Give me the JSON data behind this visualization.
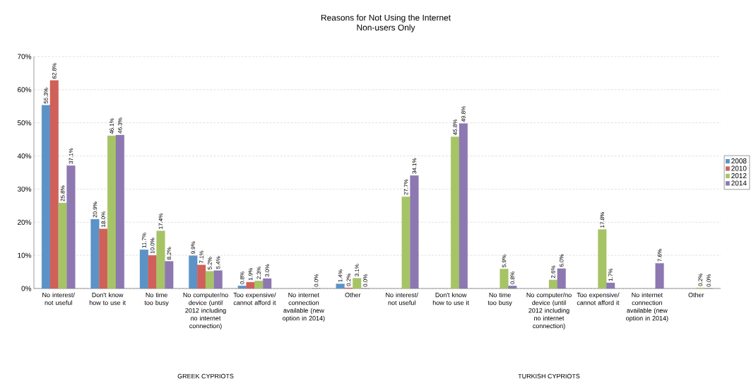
{
  "chart_data": {
    "type": "bar",
    "title": "Reasons for Not Using the Internet",
    "subtitle": "Non-users Only",
    "categories": [
      "No interest/ not useful",
      "Don't know how to use it",
      "No time too busy",
      "No computer/no device (until 2012 including no internet connection)",
      "Too expensive/ cannot afford it",
      "No internet connection available (new option in 2014)",
      "Other",
      "No interest/ not useful",
      "Don't know how to use it",
      "No time too busy",
      "No computer/no device (until 2012 including no internet connection)",
      "Too expensive/ cannot afford it",
      "No internet connection available (new option in 2014)",
      "Other"
    ],
    "series": [
      {
        "name": "2008",
        "color": "#5b93c7",
        "values": [
          55.3,
          20.9,
          11.7,
          9.9,
          0.8,
          null,
          1.4,
          null,
          null,
          null,
          null,
          null,
          null,
          null
        ],
        "value_labels": [
          "55.3%",
          "20.9%",
          "11.7%",
          "9.9%",
          "0.8%",
          null,
          "1.4%",
          null,
          null,
          null,
          null,
          null,
          null,
          null
        ]
      },
      {
        "name": "2010",
        "color": "#d0605a",
        "values": [
          62.8,
          18.0,
          10.0,
          7.1,
          1.9,
          null,
          0.2,
          null,
          null,
          null,
          null,
          null,
          null,
          null
        ],
        "value_labels": [
          "62.8%",
          "18.0%",
          "10.0%",
          "7.1%",
          "1.9%",
          null,
          "0.2%",
          null,
          null,
          null,
          null,
          null,
          null,
          null
        ]
      },
      {
        "name": "2012",
        "color": "#a6c466",
        "values": [
          25.8,
          46.1,
          17.4,
          5.2,
          2.3,
          null,
          3.1,
          27.7,
          45.8,
          5.9,
          2.6,
          17.8,
          null,
          0.2
        ],
        "value_labels": [
          "25.8%",
          "46.1%",
          "17.4%",
          "5.2%",
          "2.3%",
          null,
          "3.1%",
          "27.7%",
          "45.8%",
          "5.9%",
          "2.6%",
          "17.8%",
          null,
          "0.2%"
        ]
      },
      {
        "name": "2014",
        "color": "#8d78b1",
        "values": [
          37.1,
          46.3,
          8.2,
          5.4,
          3.0,
          0.0,
          0.0,
          34.1,
          49.8,
          0.8,
          6.0,
          1.7,
          7.6,
          0.0
        ],
        "value_labels": [
          "37.1%",
          "46.3%",
          "8.2%",
          "5.4%",
          "3.0%",
          "0.0%",
          "0.0%",
          "34.1%",
          "49.8%",
          "0.8%",
          "6.0%",
          "1.7%",
          "7.6%",
          "0.0%"
        ]
      }
    ],
    "ylim": [
      0,
      70
    ],
    "yticks": [
      {
        "value": 0,
        "label": "0%"
      },
      {
        "value": 10,
        "label": "10%"
      },
      {
        "value": 20,
        "label": "20%"
      },
      {
        "value": 30,
        "label": "30%"
      },
      {
        "value": 40,
        "label": "40%"
      },
      {
        "value": 50,
        "label": "50%"
      },
      {
        "value": 60,
        "label": "60%"
      },
      {
        "value": 70,
        "label": "70%"
      }
    ],
    "grid": "y",
    "legend": "right",
    "annotations": [
      "GREEK CYPRIOTS",
      "TURKISH CYPRIOTS"
    ]
  }
}
